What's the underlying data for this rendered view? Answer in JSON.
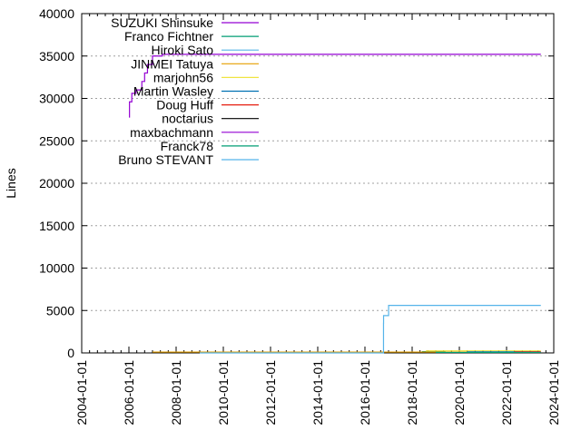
{
  "chart_data": {
    "type": "line",
    "title": "",
    "xlabel": "",
    "ylabel": "Lines",
    "ylim": [
      0,
      40000
    ],
    "xlim": [
      "2004-01-01",
      "2024-01-01"
    ],
    "yticks": [
      "0",
      "5000",
      "10000",
      "15000",
      "20000",
      "25000",
      "30000",
      "35000",
      "40000"
    ],
    "xticks": [
      "2004-01-01",
      "2006-01-01",
      "2008-01-01",
      "2010-01-01",
      "2012-01-01",
      "2014-01-01",
      "2016-01-01",
      "2018-01-01",
      "2020-01-01",
      "2022-01-01",
      "2024-01-01"
    ],
    "grid": true,
    "legend_position": "top-left",
    "series": [
      {
        "name": "SUZUKI Shinsuke",
        "color": "#9400d3",
        "points": [
          [
            "2006-01-01",
            27800
          ],
          [
            "2006-01-10",
            29600
          ],
          [
            "2006-02-15",
            30600
          ],
          [
            "2006-04-20",
            31000
          ],
          [
            "2006-07-20",
            32000
          ],
          [
            "2006-09-01",
            33000
          ],
          [
            "2006-10-15",
            34000
          ],
          [
            "2007-01-01",
            35000
          ],
          [
            "2007-06-01",
            35200
          ],
          [
            "2023-06-15",
            35200
          ]
        ]
      },
      {
        "name": "Franco Fichtner",
        "color": "#009e73",
        "points": [
          [
            "2018-06-01",
            150
          ],
          [
            "2019-06-01",
            150
          ]
        ]
      },
      {
        "name": "Hiroki Sato",
        "color": "#56b4e9",
        "points": []
      },
      {
        "name": "JINMEI Tatuya",
        "color": "#e69f00",
        "points": [
          [
            "2007-01-01",
            100
          ],
          [
            "2023-06-15",
            100
          ]
        ]
      },
      {
        "name": "marjohn56",
        "color": "#f0e442",
        "points": [
          [
            "2018-08-01",
            250
          ],
          [
            "2023-06-15",
            250
          ]
        ]
      },
      {
        "name": "Martin Wasley",
        "color": "#0072b2",
        "points": [
          [
            "2020-05-01",
            120
          ],
          [
            "2023-06-15",
            120
          ]
        ]
      },
      {
        "name": "Doug Huff",
        "color": "#e51e10",
        "points": [
          [
            "2022-05-01",
            120
          ],
          [
            "2023-06-15",
            120
          ]
        ]
      },
      {
        "name": "noctarius",
        "color": "#000000",
        "points": []
      },
      {
        "name": "maxbachmann",
        "color": "#9400d3",
        "points": []
      },
      {
        "name": "Franck78",
        "color": "#009e73",
        "points": [
          [
            "2019-01-01",
            60
          ],
          [
            "2023-06-15",
            60
          ]
        ]
      },
      {
        "name": "Bruno STEVANT",
        "color": "#56b4e9",
        "points": [
          [
            "2009-01-01",
            0
          ],
          [
            "2016-10-15",
            3500
          ],
          [
            "2016-10-16",
            4400
          ],
          [
            "2017-01-01",
            4400
          ],
          [
            "2017-01-02",
            5600
          ],
          [
            "2023-06-15",
            5600
          ]
        ]
      }
    ]
  }
}
